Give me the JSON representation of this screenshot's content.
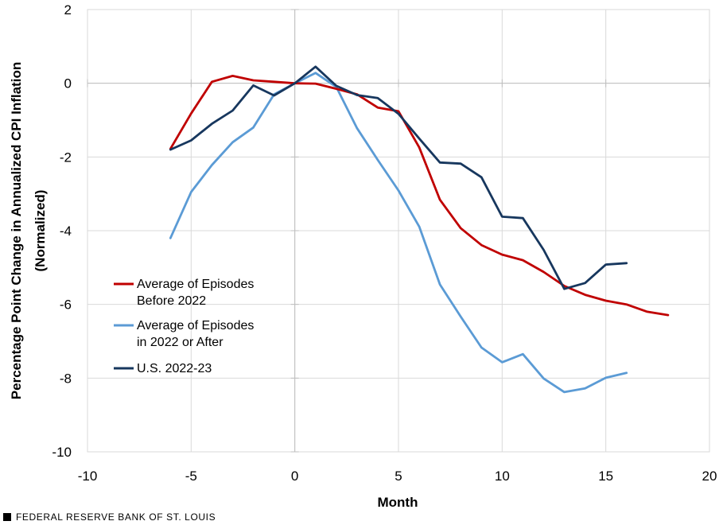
{
  "chart_data": {
    "type": "line",
    "title": "",
    "xlabel": "Month",
    "ylabel": [
      "Percentage Point Change in Annualized CPI Inflation",
      "(Normalized)"
    ],
    "xlim": [
      -10,
      20
    ],
    "ylim": [
      -10,
      2
    ],
    "xticks": [
      "-10",
      "-5",
      "0",
      "5",
      "10",
      "15",
      "20"
    ],
    "yticks": [
      "2",
      "0",
      "-2",
      "-4",
      "-6",
      "-8",
      "-10"
    ],
    "grid": "major gridlines, light gray",
    "legend_position": "lower-left inside plot",
    "series": [
      {
        "name": "Average of Episodes Before 2022",
        "legend_lines": [
          "Average of Episodes",
          "Before 2022"
        ],
        "color": "#c00000",
        "x": [
          -6,
          -5,
          -4,
          -3,
          -2,
          -1,
          0,
          1,
          2,
          3,
          4,
          5,
          6,
          7,
          8,
          9,
          10,
          11,
          12,
          13,
          14,
          15,
          16,
          17,
          18
        ],
        "y": [
          -1.78,
          -0.82,
          0.04,
          0.2,
          0.08,
          0.04,
          0.0,
          -0.01,
          -0.15,
          -0.3,
          -0.66,
          -0.76,
          -1.74,
          -3.16,
          -3.93,
          -4.39,
          -4.65,
          -4.8,
          -5.12,
          -5.5,
          -5.74,
          -5.9,
          -6.0,
          -6.2,
          -6.29
        ]
      },
      {
        "name": "Average of Episodes in 2022 or After",
        "legend_lines": [
          "Average of Episodes",
          "in 2022 or After"
        ],
        "color": "#5b9bd5",
        "x": [
          -6,
          -5,
          -4,
          -3,
          -2,
          -1,
          0,
          1,
          2,
          3,
          4,
          5,
          6,
          7,
          8,
          9,
          10,
          11,
          12,
          13,
          14,
          15,
          16
        ],
        "y": [
          -4.2,
          -2.95,
          -2.22,
          -1.6,
          -1.2,
          -0.3,
          0.0,
          0.28,
          -0.1,
          -1.22,
          -2.08,
          -2.91,
          -3.89,
          -5.46,
          -6.33,
          -7.17,
          -7.57,
          -7.35,
          -8.01,
          -8.38,
          -8.28,
          -7.99,
          -7.86
        ]
      },
      {
        "name": "U.S. 2022-23",
        "legend_lines": [
          "U.S. 2022-23"
        ],
        "color": "#17375e",
        "x": [
          -6,
          -5,
          -4,
          -3,
          -2,
          -1,
          0,
          1,
          2,
          3,
          4,
          5,
          6,
          7,
          8,
          9,
          10,
          11,
          12,
          13,
          14,
          15,
          16
        ],
        "y": [
          -1.8,
          -1.55,
          -1.1,
          -0.74,
          -0.06,
          -0.33,
          0.0,
          0.45,
          -0.07,
          -0.32,
          -0.4,
          -0.83,
          -1.5,
          -2.15,
          -2.18,
          -2.55,
          -3.62,
          -3.66,
          -4.52,
          -5.58,
          -5.42,
          -4.92,
          -4.88
        ]
      }
    ]
  },
  "footer": {
    "text": "FEDERAL RESERVE BANK OF ST. LOUIS"
  }
}
